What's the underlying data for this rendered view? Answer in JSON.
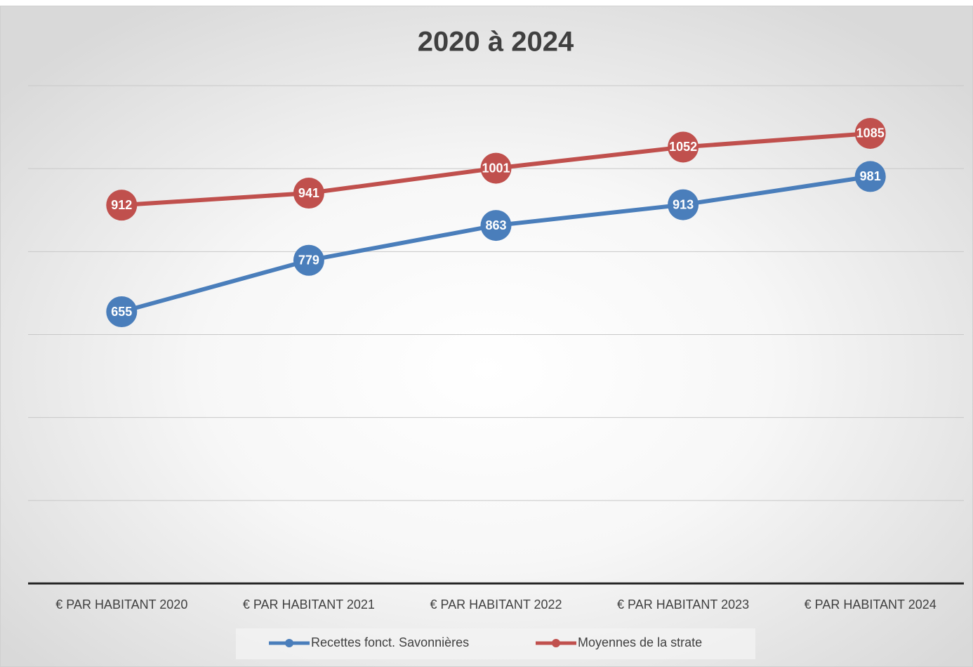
{
  "chart_data": {
    "type": "line",
    "title": "2020 à 2024",
    "categories": [
      "€ PAR HABITANT 2020",
      "€ PAR HABITANT 2021",
      "€ PAR HABITANT 2022",
      "€ PAR HABITANT 2023",
      "€ PAR HABITANT 2024"
    ],
    "series": [
      {
        "name": "Recettes fonct. Savonnières",
        "color": "#4a7ebb",
        "values": [
          655,
          779,
          863,
          913,
          981
        ]
      },
      {
        "name": "Moyennes de la strate",
        "color": "#c0504d",
        "values": [
          912,
          941,
          1001,
          1052,
          1085
        ]
      }
    ],
    "ylim": [
      0,
      1200
    ],
    "yticks": [
      0,
      200,
      400,
      600,
      800,
      1000,
      1200
    ],
    "grid": true,
    "legend": "bottom"
  }
}
